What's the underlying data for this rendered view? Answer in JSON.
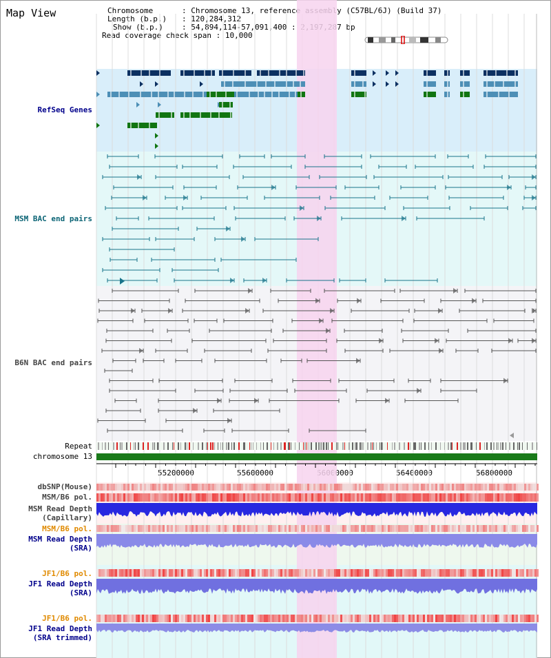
{
  "view_title": "Map View",
  "info": {
    "chromosome_label": "Chromosome",
    "chromosome_value": "Chromosome 13, reference assembly (C57BL/6J) (Build 37)",
    "length_label": "Length (b.p.)",
    "length_value": "120,284,312",
    "show_label": "Show (b.p.)",
    "show_value": "54,894,114-57,091,400 : 2,197,287 bp",
    "coverage_label": "Read coverage check span",
    "coverage_value": "10,000"
  },
  "tracks": {
    "refseq": "RefSeq Genes",
    "msm_bac": "MSM BAC end pairs",
    "b6n_bac": "B6N BAC end pairs",
    "repeat": "Repeat",
    "chromosome": "chromosome 13",
    "dbsnp": "dbSNP(Mouse)",
    "msm_b6_pol": "MSM/B6 pol.",
    "msm_depth_cap_1": "MSM Read Depth",
    "msm_depth_cap_2": "(Capillary)",
    "msm_b6_pol_2": "MSM/B6 pol.",
    "msm_depth_sra_1": "MSM Read Depth",
    "msm_depth_sra_2": "(SRA)",
    "jf1_b6_pol": "JF1/B6 pol.",
    "jf1_depth_sra_1": "JF1 Read Depth",
    "jf1_depth_sra_2": "(SRA)",
    "jf1_b6_pol_2": "JF1/B6 pol.",
    "jf1_depth_trim_1": "JF1 Read Depth",
    "jf1_depth_trim_2": "(SRA trimmed)"
  },
  "axis": {
    "ticks": [
      "55200000",
      "55600000",
      "56000000",
      "56400000",
      "56800000"
    ]
  },
  "colors": {
    "highlight": "#f7d4ef",
    "refseq_bg": "#d9eefa",
    "msm_bg": "#e4f8f8",
    "b6n_bg": "#f4f4f7",
    "gene_dark": "#0c3061",
    "gene_mid": "#4d8fb6",
    "gene_green": "#117511",
    "msm_pair": "#18738a",
    "b6n_pair": "#555555",
    "chromosome_bar": "#1a7a1a",
    "label_blue": "#00008b",
    "label_teal": "#0b6475",
    "label_orange": "#e08a00",
    "label_gray": "#444444"
  }
}
